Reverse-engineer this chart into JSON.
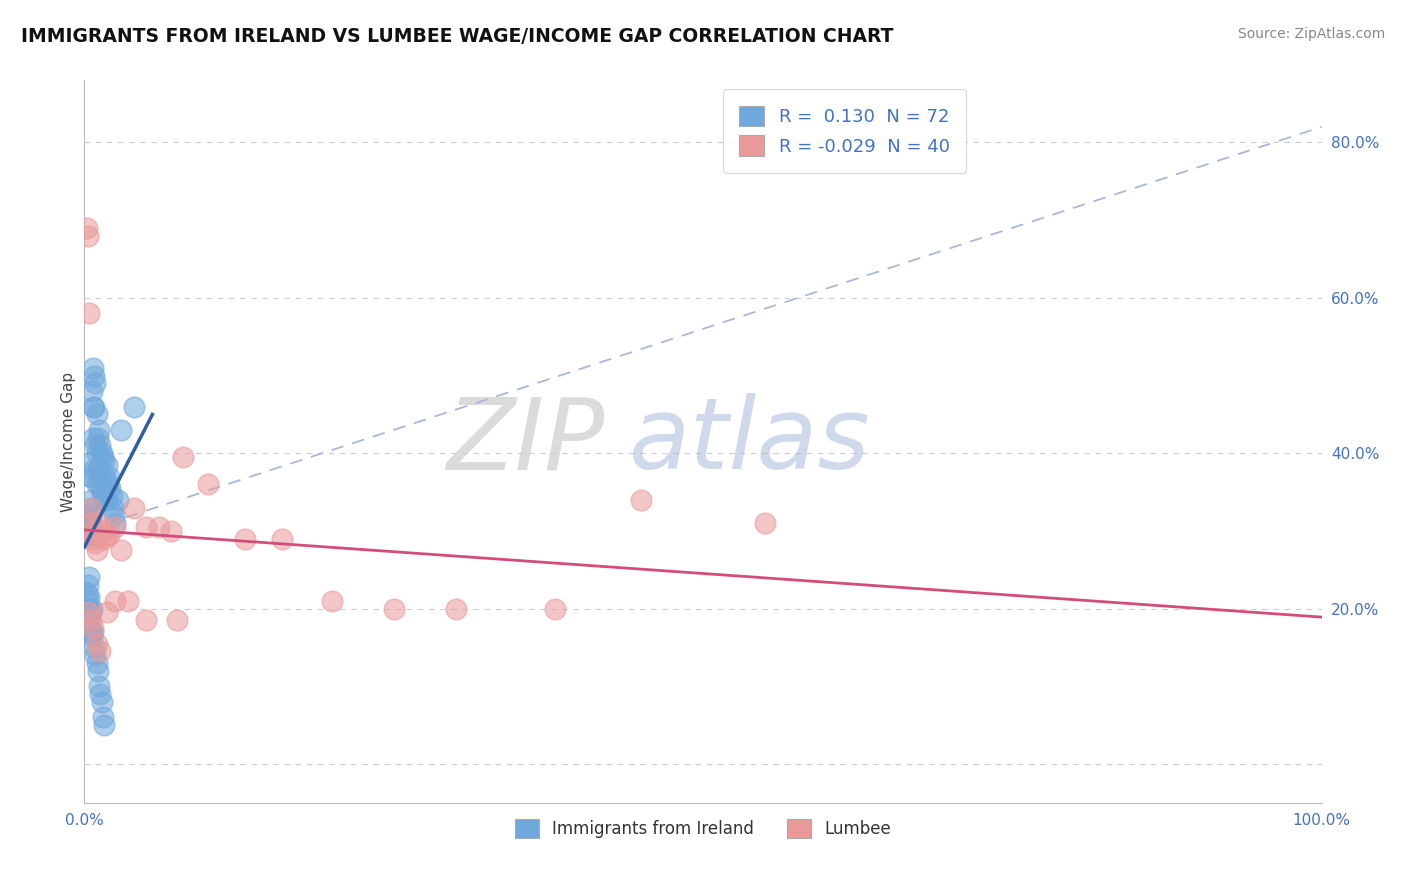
{
  "title": "IMMIGRANTS FROM IRELAND VS LUMBEE WAGE/INCOME GAP CORRELATION CHART",
  "source": "Source: ZipAtlas.com",
  "ylabel": "Wage/Income Gap",
  "blue_color": "#6fa8dc",
  "pink_color": "#ea9999",
  "blue_line_color": "#2e5fa3",
  "pink_line_color": "#d44c7a",
  "dashed_line_color": "#aab8d8",
  "tick_color": "#4472c4",
  "ireland_x": [
    0.002,
    0.002,
    0.003,
    0.003,
    0.003,
    0.004,
    0.004,
    0.004,
    0.005,
    0.005,
    0.005,
    0.005,
    0.006,
    0.006,
    0.006,
    0.007,
    0.007,
    0.007,
    0.008,
    0.008,
    0.008,
    0.009,
    0.009,
    0.01,
    0.01,
    0.01,
    0.011,
    0.011,
    0.012,
    0.012,
    0.013,
    0.013,
    0.014,
    0.014,
    0.015,
    0.015,
    0.016,
    0.016,
    0.017,
    0.018,
    0.018,
    0.019,
    0.02,
    0.021,
    0.022,
    0.023,
    0.024,
    0.025,
    0.027,
    0.03,
    0.002,
    0.002,
    0.003,
    0.003,
    0.003,
    0.004,
    0.004,
    0.005,
    0.005,
    0.006,
    0.006,
    0.007,
    0.008,
    0.009,
    0.01,
    0.011,
    0.012,
    0.013,
    0.014,
    0.015,
    0.016,
    0.04
  ],
  "ireland_y": [
    0.305,
    0.295,
    0.32,
    0.31,
    0.3,
    0.315,
    0.305,
    0.295,
    0.37,
    0.34,
    0.33,
    0.315,
    0.48,
    0.39,
    0.37,
    0.51,
    0.46,
    0.42,
    0.5,
    0.46,
    0.38,
    0.49,
    0.41,
    0.45,
    0.4,
    0.36,
    0.42,
    0.38,
    0.43,
    0.38,
    0.41,
    0.36,
    0.4,
    0.35,
    0.395,
    0.345,
    0.39,
    0.34,
    0.37,
    0.385,
    0.34,
    0.36,
    0.37,
    0.355,
    0.345,
    0.33,
    0.32,
    0.31,
    0.34,
    0.43,
    0.22,
    0.2,
    0.23,
    0.21,
    0.185,
    0.24,
    0.215,
    0.195,
    0.17,
    0.2,
    0.165,
    0.17,
    0.15,
    0.14,
    0.13,
    0.12,
    0.1,
    0.09,
    0.08,
    0.06,
    0.05,
    0.46
  ],
  "lumbee_x": [
    0.002,
    0.003,
    0.004,
    0.005,
    0.006,
    0.007,
    0.008,
    0.009,
    0.01,
    0.012,
    0.014,
    0.016,
    0.018,
    0.02,
    0.025,
    0.03,
    0.04,
    0.05,
    0.06,
    0.07,
    0.08,
    0.1,
    0.13,
    0.16,
    0.2,
    0.25,
    0.3,
    0.38,
    0.45,
    0.55,
    0.003,
    0.005,
    0.007,
    0.01,
    0.013,
    0.018,
    0.025,
    0.035,
    0.05,
    0.075
  ],
  "lumbee_y": [
    0.69,
    0.68,
    0.58,
    0.33,
    0.31,
    0.3,
    0.29,
    0.285,
    0.275,
    0.31,
    0.3,
    0.29,
    0.295,
    0.295,
    0.305,
    0.275,
    0.33,
    0.305,
    0.305,
    0.3,
    0.395,
    0.36,
    0.29,
    0.29,
    0.21,
    0.2,
    0.2,
    0.2,
    0.34,
    0.31,
    0.195,
    0.185,
    0.175,
    0.155,
    0.145,
    0.195,
    0.21,
    0.21,
    0.185,
    0.185
  ],
  "xlim": [
    0.0,
    1.0
  ],
  "ylim": [
    -0.05,
    0.88
  ],
  "yticks": [
    0.0,
    0.2,
    0.4,
    0.6,
    0.8
  ],
  "ytick_labels": [
    "",
    "20.0%",
    "40.0%",
    "60.0%",
    "80.0%"
  ]
}
